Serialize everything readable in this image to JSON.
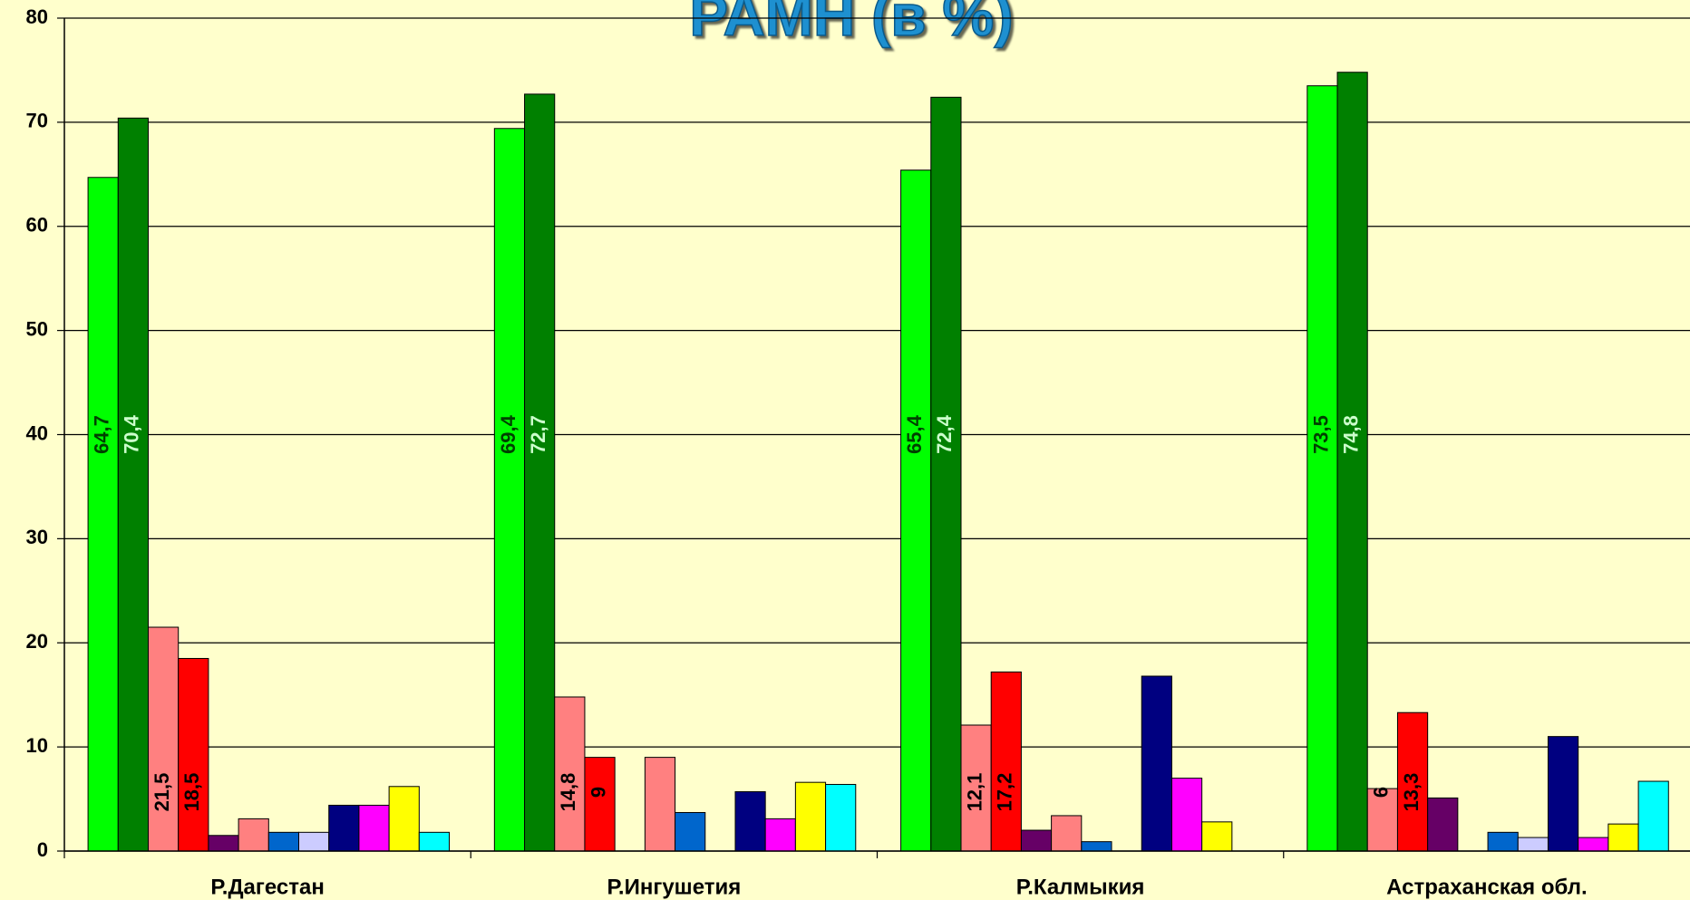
{
  "chart_data": {
    "type": "bar",
    "title": "РАМН (в %)",
    "categories": [
      "Р.Дагестан",
      "Р.Ингушетия",
      "Р.Калмыкия",
      "Астраханская обл."
    ],
    "series": [
      {
        "color": "#00ff00",
        "values": [
          64.7,
          69.4,
          65.4,
          73.5
        ],
        "value_labels": [
          "64,7",
          "69,4",
          "65,4",
          "73,5"
        ]
      },
      {
        "color": "#008000",
        "values": [
          70.4,
          72.7,
          72.4,
          74.8
        ],
        "value_labels": [
          "70,4",
          "72,7",
          "72,4",
          "74,8"
        ]
      },
      {
        "color": "#ff8080",
        "values": [
          21.5,
          14.8,
          12.1,
          6
        ],
        "value_labels": [
          "21,5",
          "14,8",
          "12,1",
          "6"
        ]
      },
      {
        "color": "#ff0000",
        "values": [
          18.5,
          9,
          17.2,
          13.3
        ],
        "value_labels": [
          "18,5",
          "9",
          "17,2",
          "13,3"
        ]
      },
      {
        "color": "#660066",
        "values": [
          1.5,
          null,
          2.0,
          5.1
        ]
      },
      {
        "color": "#ff8080",
        "values": [
          3.1,
          9,
          3.4,
          null
        ]
      },
      {
        "color": "#0066cc",
        "values": [
          1.8,
          3.7,
          0.9,
          1.8
        ]
      },
      {
        "color": "#ccccff",
        "values": [
          1.8,
          null,
          null,
          1.3
        ]
      },
      {
        "color": "#000080",
        "values": [
          4.4,
          5.7,
          16.8,
          11.0
        ]
      },
      {
        "color": "#ff00ff",
        "values": [
          4.4,
          3.1,
          7.0,
          1.3
        ]
      },
      {
        "color": "#ffff00",
        "values": [
          6.2,
          6.6,
          2.8,
          2.6
        ]
      },
      {
        "color": "#00ffff",
        "values": [
          1.8,
          6.4,
          null,
          6.7
        ]
      }
    ],
    "ylim": [
      0,
      80
    ],
    "yticks": [
      0,
      10,
      20,
      30,
      40,
      50,
      60,
      70,
      80
    ],
    "grid": true
  }
}
